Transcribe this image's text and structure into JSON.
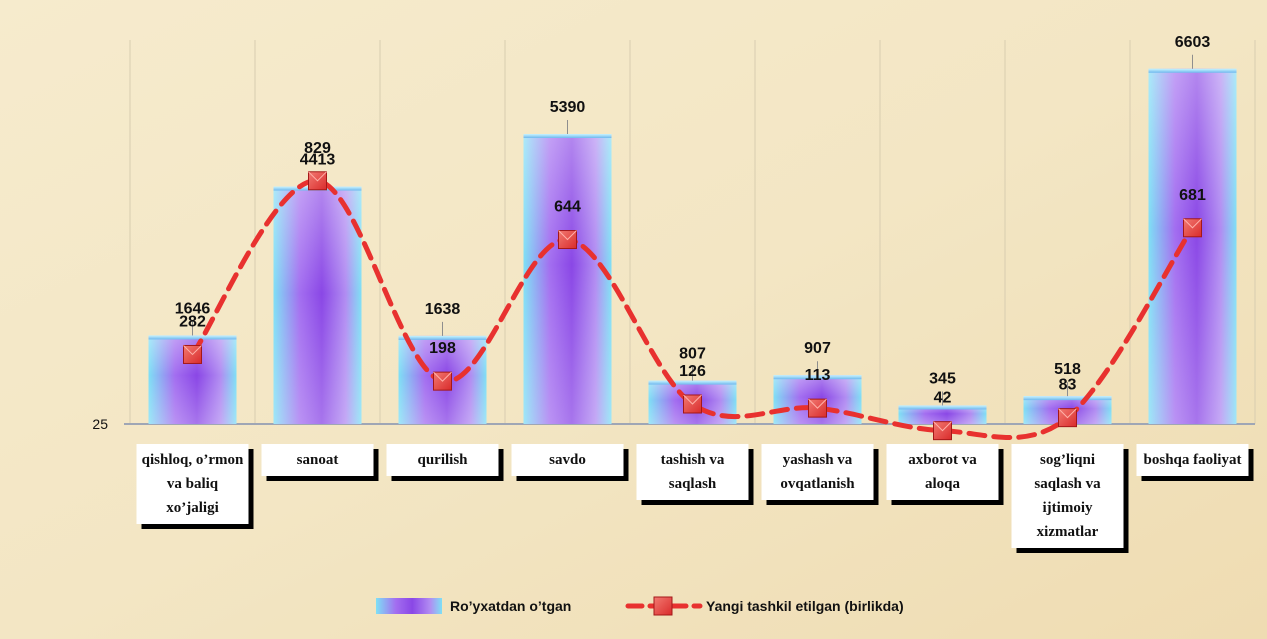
{
  "colors": {
    "background": "#f3e6c4",
    "bar_light": "#7ee0f5",
    "bar_dark": "#8a47e6",
    "line": "#e8312f",
    "marker": "#d92b2b",
    "label_box": "#ffffff",
    "text": "#111111"
  },
  "chart_data": {
    "type": "bar",
    "categories": [
      [
        "qishloq, o’rmon",
        "va baliq",
        "xo’jaligi"
      ],
      [
        "sanoat"
      ],
      [
        "qurilish"
      ],
      [
        "savdo"
      ],
      [
        "tashish va",
        "saqlash"
      ],
      [
        "yashash va",
        "ovqatlanish"
      ],
      [
        "axborot va",
        "aloqa"
      ],
      [
        "sog’liqni",
        "saqlash va",
        "ijtimoiy",
        "xizmatlar"
      ],
      [
        "boshqa faoliyat"
      ]
    ],
    "y_axis_tick": "25",
    "series": [
      {
        "name": "Ro’yxatdan o’tgan",
        "type": "bar",
        "values": [
          1646,
          4413,
          1638,
          5390,
          807,
          907,
          345,
          518,
          6603
        ],
        "labels": [
          "1646",
          "4413",
          "1638",
          "5390",
          "807",
          "907",
          "345",
          "518",
          "6603"
        ]
      },
      {
        "name": "Yangi tashkil etilgan (birlikda)",
        "type": "line",
        "values": [
          282,
          829,
          198,
          644,
          126,
          113,
          42,
          83,
          681
        ],
        "labels": [
          "282",
          "829",
          "198",
          "644",
          "126",
          "113",
          "42",
          "83",
          "681"
        ]
      }
    ],
    "legend_position": "bottom",
    "grid": "vertical category lines"
  }
}
